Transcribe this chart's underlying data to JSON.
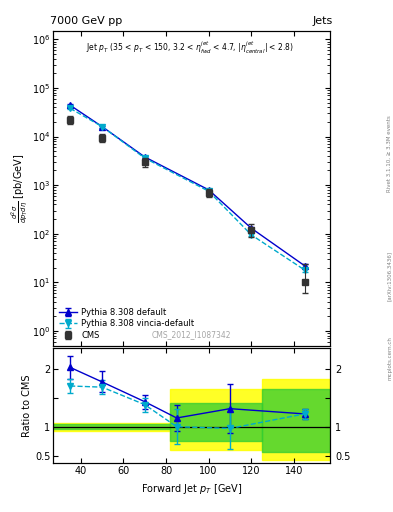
{
  "title_left": "7000 GeV pp",
  "title_right": "Jets",
  "watermark": "CMS_2012_I1087342",
  "right_label1": "Rivet 3.1.10, ≥ 3.3M events",
  "right_label2": "[arXiv:1306.3436]",
  "right_label3": "mcplots.cern.ch",
  "cms_x": [
    35,
    50,
    70,
    100,
    120,
    145
  ],
  "cms_y": [
    22000,
    9500,
    3000,
    700,
    120,
    10
  ],
  "cms_yerr_lo": [
    4000,
    1800,
    600,
    130,
    35,
    4
  ],
  "cms_yerr_hi": [
    4000,
    1800,
    600,
    130,
    35,
    14
  ],
  "pythia_x": [
    35,
    50,
    70,
    100,
    120,
    145
  ],
  "pythia_y": [
    44000,
    16000,
    3800,
    800,
    130,
    22
  ],
  "pythia_yerr": [
    2000,
    800,
    200,
    40,
    8,
    2
  ],
  "vincia_x": [
    35,
    50,
    70,
    100,
    120,
    145
  ],
  "vincia_y": [
    38000,
    16000,
    3600,
    750,
    95,
    18
  ],
  "vincia_yerr": [
    1800,
    750,
    180,
    38,
    7,
    2
  ],
  "ratio_pythia_x": [
    35,
    50,
    70,
    85,
    110,
    145
  ],
  "ratio_pythia_y": [
    2.02,
    1.77,
    1.43,
    1.15,
    1.31,
    1.22
  ],
  "ratio_pythia_yerr_lo": [
    0.2,
    0.18,
    0.12,
    0.22,
    0.42,
    0.08
  ],
  "ratio_pythia_yerr_hi": [
    0.2,
    0.18,
    0.12,
    0.22,
    0.42,
    0.08
  ],
  "ratio_vincia_x": [
    35,
    50,
    70,
    85,
    110,
    145
  ],
  "ratio_vincia_y": [
    1.7,
    1.68,
    1.38,
    1.0,
    0.97,
    1.22
  ],
  "ratio_vincia_yerr_lo": [
    0.12,
    0.12,
    0.12,
    0.3,
    0.36,
    0.08
  ],
  "ratio_vincia_yerr_hi": [
    0.12,
    0.12,
    0.12,
    0.3,
    0.36,
    0.08
  ],
  "yellow_regions": [
    {
      "xmin": 27,
      "xmax": 82,
      "ymin": 0.93,
      "ymax": 1.07
    },
    {
      "xmin": 82,
      "xmax": 125,
      "ymin": 0.6,
      "ymax": 1.65
    },
    {
      "xmin": 125,
      "xmax": 157,
      "ymin": 0.43,
      "ymax": 1.82
    }
  ],
  "green_regions": [
    {
      "xmin": 27,
      "xmax": 82,
      "ymin": 0.96,
      "ymax": 1.04
    },
    {
      "xmin": 82,
      "xmax": 125,
      "ymin": 0.75,
      "ymax": 1.4
    },
    {
      "xmin": 125,
      "xmax": 157,
      "ymin": 0.57,
      "ymax": 1.65
    }
  ],
  "cms_color": "#333333",
  "pythia_color": "#0000cc",
  "vincia_color": "#00aacc",
  "xlim": [
    27,
    157
  ],
  "ylim_main_lo": 0.5,
  "ylim_main_hi": 1500000,
  "ylim_ratio_lo": 0.37,
  "ylim_ratio_hi": 2.35
}
